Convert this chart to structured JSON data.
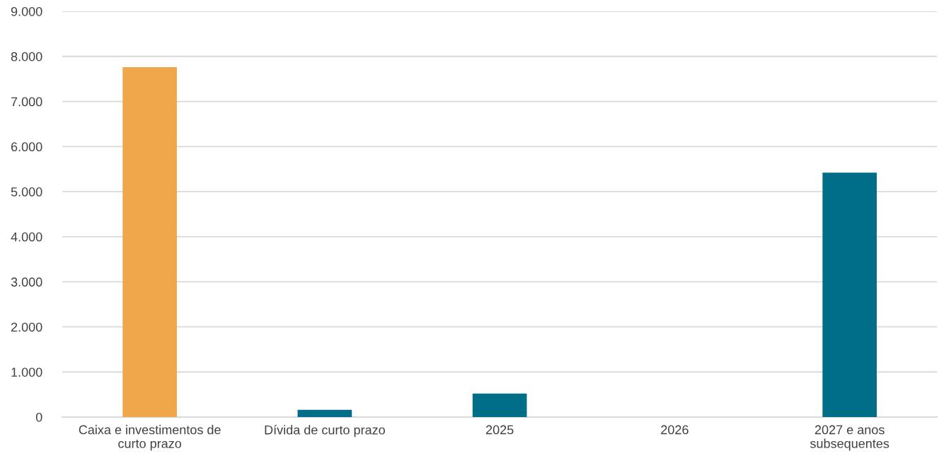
{
  "chart_data": {
    "type": "bar",
    "categories": [
      "Caixa e investimentos de\ncurto prazo",
      "Dívida de curto prazo",
      "2025",
      "2026",
      "2027 e anos\nsubsequentes"
    ],
    "values": [
      7760,
      160,
      520,
      0,
      5420
    ],
    "colors": [
      "#f0a64b",
      "#006e87",
      "#006e87",
      "#006e87",
      "#006e87"
    ],
    "ylim": [
      0,
      9000
    ],
    "yticks": [
      0,
      {
        "value": 1000,
        "label": "1.000"
      },
      {
        "value": 2000,
        "label": "2.000"
      },
      {
        "value": 3000,
        "label": "3.000"
      },
      {
        "value": 4000,
        "label": "4.000"
      },
      {
        "value": 5000,
        "label": "5.000"
      },
      {
        "value": 6000,
        "label": "6.000"
      },
      {
        "value": 7000,
        "label": "7.000"
      },
      {
        "value": 8000,
        "label": "8.000"
      },
      {
        "value": 9000,
        "label": "9.000"
      }
    ],
    "grid": "y"
  }
}
